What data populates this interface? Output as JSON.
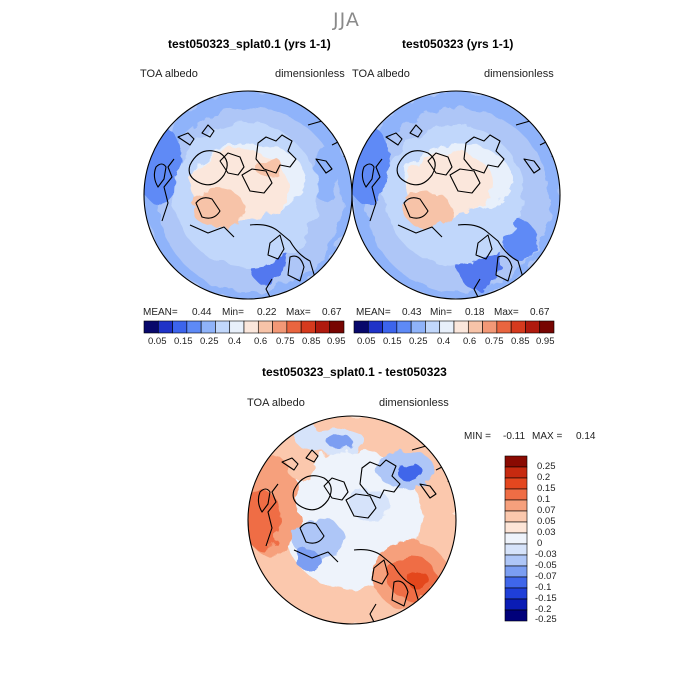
{
  "season_title": "JJA",
  "palettes": {
    "full": [
      "#08086b",
      "#1f33c8",
      "#3c64ec",
      "#5e8af6",
      "#8fb3fa",
      "#c1d7fb",
      "#e8f0fb",
      "#fbe7dc",
      "#f7c3a8",
      "#f29876",
      "#e9653f",
      "#d63a1e",
      "#b01a0e",
      "#770502"
    ],
    "diff": [
      "#00007a",
      "#0a1cb5",
      "#1f3fd8",
      "#3f66ea",
      "#7b9ef2",
      "#aec6f7",
      "#d6e3fa",
      "#eef3fb",
      "#fde5d7",
      "#fbc8ad",
      "#f6a07c",
      "#ef6d45",
      "#e4471f",
      "#c72a10",
      "#8a0a02"
    ]
  },
  "panels": [
    {
      "title": "test050323_splat0.1 (yrs 1-1)",
      "variable_label": "TOA albedo",
      "units_label": "dimensionless",
      "stats": {
        "mean_label": "MEAN=",
        "mean": "0.44",
        "min_label": "Min=",
        "min": "0.22",
        "max_label": "Max=",
        "max": "0.67"
      },
      "colorbar_ticks": [
        "0.05",
        "0.15",
        "0.25",
        "0.4",
        "0.6",
        "0.75",
        "0.85",
        "0.95"
      ]
    },
    {
      "title": "test050323 (yrs 1-1)",
      "variable_label": "TOA albedo",
      "units_label": "dimensionless",
      "stats": {
        "mean_label": "MEAN=",
        "mean": "0.43",
        "min_label": "Min=",
        "min": "0.18",
        "max_label": "Max=",
        "max": "0.67"
      },
      "colorbar_ticks": [
        "0.05",
        "0.15",
        "0.25",
        "0.4",
        "0.6",
        "0.75",
        "0.85",
        "0.95"
      ]
    }
  ],
  "difference_panel": {
    "title": "test050323_splat0.1 - test050323",
    "variable_label": "TOA albedo",
    "units_label": "dimensionless",
    "stats": {
      "min_label": "MIN =",
      "min": "-0.11",
      "max_label": "MAX =",
      "max": "0.14"
    },
    "colorbar_ticks": [
      "0.25",
      "0.2",
      "0.15",
      "0.1",
      "0.07",
      "0.05",
      "0.03",
      "0",
      "-0.03",
      "-0.05",
      "-0.07",
      "-0.1",
      "-0.15",
      "-0.2",
      "-0.25"
    ]
  }
}
